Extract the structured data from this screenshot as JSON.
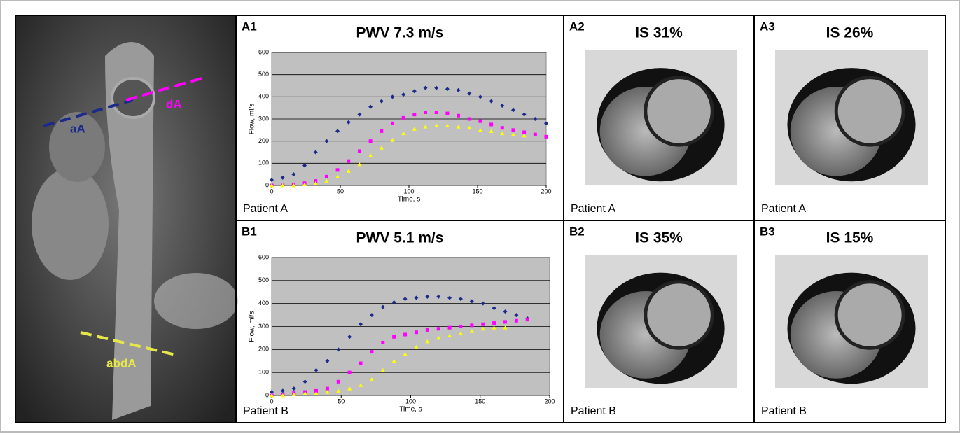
{
  "chart_data": [
    {
      "type": "scatter",
      "title": "PWV 7.3 m/s",
      "x_label": "Time, s",
      "y_label": "Flow, ml/s",
      "x": [
        0,
        8,
        16,
        24,
        32,
        40,
        48,
        56,
        64,
        72,
        80,
        88,
        96,
        104,
        112,
        120,
        128,
        136,
        144,
        152,
        160,
        168,
        176,
        184,
        192,
        200
      ],
      "series": [
        {
          "color": "#1c2a8c",
          "marker": "diamond",
          "values": [
            25,
            35,
            50,
            90,
            150,
            200,
            245,
            285,
            320,
            355,
            380,
            400,
            410,
            425,
            440,
            440,
            435,
            430,
            415,
            400,
            380,
            360,
            340,
            320,
            300,
            280
          ]
        },
        {
          "color": "#ff00ff",
          "marker": "square",
          "values": [
            0,
            0,
            5,
            10,
            20,
            40,
            70,
            110,
            155,
            200,
            245,
            280,
            305,
            320,
            330,
            330,
            325,
            315,
            300,
            290,
            275,
            260,
            250,
            240,
            230,
            220
          ]
        },
        {
          "color": "#ffff00",
          "marker": "triangle",
          "values": [
            0,
            0,
            0,
            5,
            10,
            20,
            40,
            65,
            95,
            135,
            170,
            205,
            235,
            255,
            265,
            270,
            270,
            265,
            260,
            250,
            245,
            235,
            230,
            225,
            null,
            null
          ]
        }
      ],
      "xlim": [
        0,
        200
      ],
      "xticks": [
        0,
        50,
        100,
        150,
        200
      ],
      "ylim": [
        0,
        600
      ],
      "yticks": [
        0,
        100,
        200,
        300,
        400,
        500,
        600
      ],
      "grid": true
    },
    {
      "type": "scatter",
      "title": "PWV 5.1 m/s",
      "x_label": "Time, s",
      "y_label": "Flow, ml/s",
      "x": [
        0,
        8,
        16,
        24,
        32,
        40,
        48,
        56,
        64,
        72,
        80,
        88,
        96,
        104,
        112,
        120,
        128,
        136,
        144,
        152,
        160,
        168,
        176,
        184
      ],
      "series": [
        {
          "color": "#1c2a8c",
          "marker": "diamond",
          "values": [
            15,
            20,
            30,
            60,
            110,
            150,
            200,
            255,
            310,
            350,
            385,
            405,
            420,
            425,
            430,
            430,
            425,
            420,
            410,
            400,
            380,
            365,
            350,
            335
          ]
        },
        {
          "color": "#ff00ff",
          "marker": "square",
          "values": [
            0,
            5,
            10,
            15,
            20,
            30,
            60,
            100,
            140,
            190,
            230,
            255,
            265,
            275,
            285,
            290,
            295,
            300,
            305,
            310,
            315,
            320,
            325,
            330
          ]
        },
        {
          "color": "#ffff00",
          "marker": "triangle",
          "values": [
            0,
            0,
            5,
            10,
            10,
            15,
            20,
            30,
            45,
            70,
            110,
            150,
            180,
            210,
            235,
            250,
            260,
            270,
            280,
            290,
            295,
            295,
            null,
            null
          ]
        }
      ],
      "xlim": [
        0,
        200
      ],
      "xticks": [
        0,
        50,
        100,
        150,
        200
      ],
      "ylim": [
        0,
        600
      ],
      "yticks": [
        0,
        100,
        200,
        300,
        400,
        500,
        600
      ],
      "grid": true
    }
  ],
  "figure": {
    "mri_labels": [
      "aA",
      "dA",
      "abdA"
    ],
    "panels": [
      {
        "label": "A1",
        "patient": "Patient A"
      },
      {
        "label": "A2",
        "title": "IS 31%",
        "patient": "Patient A"
      },
      {
        "label": "A3",
        "title": "IS 26%",
        "patient": "Patient A"
      },
      {
        "label": "B1",
        "patient": "Patient B"
      },
      {
        "label": "B2",
        "title": "IS 35%",
        "patient": "Patient B"
      },
      {
        "label": "B3",
        "title": "IS 15%",
        "patient": "Patient B"
      }
    ]
  }
}
